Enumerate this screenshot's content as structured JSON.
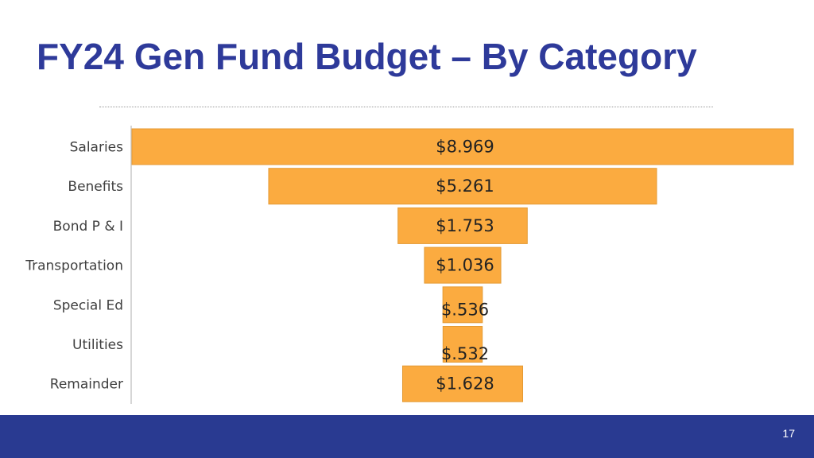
{
  "slide": {
    "title": "FY24 Gen Fund Budget – By Category",
    "page_number": "17"
  },
  "colors": {
    "title": "#2e3a9a",
    "bar": "#fbab40",
    "footer": "#293a91"
  },
  "chart_data": {
    "type": "bar",
    "orientation": "horizontal-centered",
    "title": "",
    "categories": [
      "Salaries",
      "Benefits",
      "Bond P & I",
      "Transportation",
      "Special Ed",
      "Utilities",
      "Remainder"
    ],
    "values": [
      8.969,
      5.261,
      1.753,
      1.036,
      0.536,
      0.532,
      1.628
    ],
    "value_labels": [
      "$8.969",
      "$5.261",
      "$1.753",
      "$1.036",
      "$.536",
      "$.532",
      "$1.628"
    ],
    "xlabel": "",
    "ylabel": "",
    "grid": false,
    "legend": "none"
  }
}
